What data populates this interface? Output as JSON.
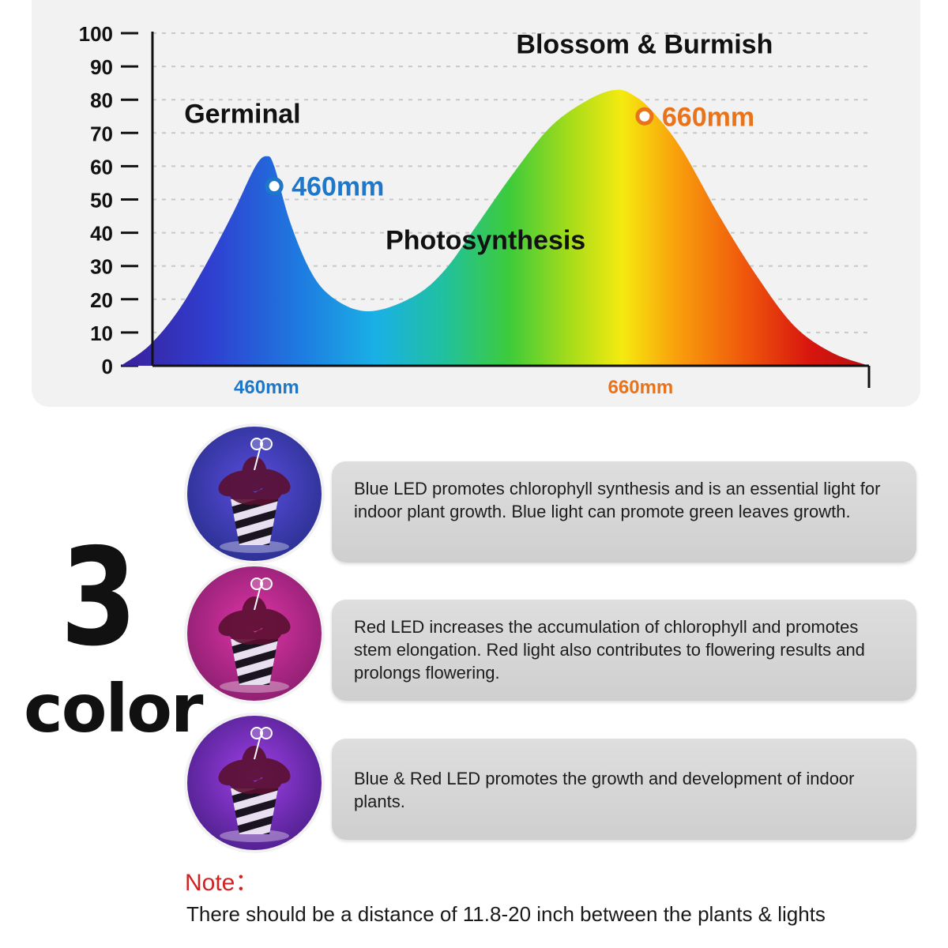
{
  "chart_data": {
    "type": "area",
    "title": "",
    "xlabel": "",
    "ylabel": "",
    "ylim": [
      0,
      100
    ],
    "y_ticks": [
      "0",
      "10",
      "20",
      "30",
      "40",
      "50",
      "60",
      "70",
      "80",
      "90",
      "100"
    ],
    "x_tick_labels": [
      {
        "label": "460mm",
        "x": 460,
        "color": "#1f77c9"
      },
      {
        "label": "660mm",
        "x": 660,
        "color": "#e8731a"
      }
    ],
    "x_range": [
      380,
      780
    ],
    "grid": true,
    "fill": "visible-spectrum gradient (violet to red)",
    "series": [
      {
        "x": [
          380,
          395,
          410,
          425,
          440,
          452,
          458,
          462,
          470,
          480,
          490,
          505,
          520,
          540,
          555,
          570,
          590,
          610,
          630,
          645,
          655,
          665,
          680,
          700,
          720,
          740,
          760,
          780
        ],
        "values": [
          0,
          6,
          16,
          30,
          46,
          60,
          63,
          60,
          44,
          30,
          22,
          17,
          17,
          22,
          30,
          42,
          58,
          72,
          80,
          83,
          81,
          76,
          65,
          45,
          27,
          12,
          4,
          0
        ]
      }
    ],
    "markers": [
      {
        "label": "460mm",
        "x": 462,
        "y": 54,
        "color": "#1f77c9"
      },
      {
        "label": "660mm",
        "x": 660,
        "y": 75,
        "color": "#e8731a"
      }
    ],
    "annotations": [
      {
        "text": "Germinal",
        "x": 445,
        "y": 73
      },
      {
        "text": "Blossom & Burmish",
        "x": 660,
        "y": 94
      },
      {
        "text": "Photosynthesis",
        "x": 575,
        "y": 35
      }
    ]
  },
  "side_label": {
    "number": "3",
    "word": "color"
  },
  "led_rows": [
    {
      "text": "Blue LED promotes chlorophyll synthesis and is an essential light for indoor plant growth. Blue light can promote green leaves growth.",
      "glow": "#5b4ee0",
      "bg": "#2a2f8f"
    },
    {
      "text": "Red LED increases the accumulation of chlorophyll and promotes stem elongation. Red light also contributes to flowering results and prolongs flowering.",
      "glow": "#e035a8",
      "bg": "#8a1e6e"
    },
    {
      "text": "Blue & Red LED promotes the growth and development of indoor plants.",
      "glow": "#a040e8",
      "bg": "#4d1f8c"
    }
  ],
  "note": {
    "title": "Note：",
    "text": "There should be a distance of 11.8-20 inch between the plants & lights"
  }
}
